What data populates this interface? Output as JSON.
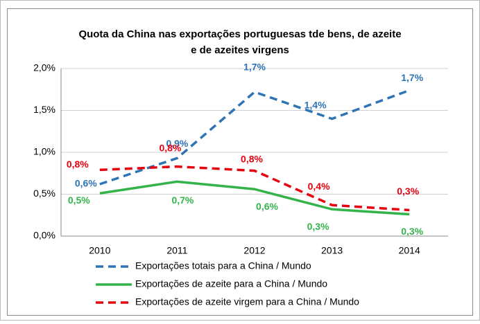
{
  "chart_data": {
    "type": "line",
    "title": [
      "Quota da China nas exportações portuguesas tde bens, de  azeite",
      "e de azeites virgens"
    ],
    "categories": [
      "2010",
      "2011",
      "2012",
      "2013",
      "2014"
    ],
    "ylim": [
      0,
      2.0
    ],
    "yticks": [
      {
        "value": 0,
        "label": "0,0%"
      },
      {
        "value": 0.5,
        "label": "0,5%"
      },
      {
        "value": 1.0,
        "label": "1,0%"
      },
      {
        "value": 1.5,
        "label": "1,5%"
      },
      {
        "value": 2.0,
        "label": "2,0%"
      }
    ],
    "grid": true,
    "series": [
      {
        "name": "Exportações totais para a China / Mundo",
        "color": "#2e74b5",
        "dash": true,
        "values": [
          0.62,
          0.93,
          1.72,
          1.4,
          1.74
        ],
        "value_labels": [
          "0,6%",
          "0,9%",
          "1,7%",
          "1,4%",
          "1,7%"
        ]
      },
      {
        "name": "Exportações de azeite para a China / Mundo",
        "color": "#33b34a",
        "dash": false,
        "values": [
          0.51,
          0.65,
          0.56,
          0.32,
          0.26
        ],
        "value_labels": [
          "0,5%",
          "0,7%",
          "0,6%",
          "0,3%",
          "0,3%"
        ]
      },
      {
        "name": "Exportações de azeite virgem para a China / Mundo",
        "color": "#e8000f",
        "dash": true,
        "values": [
          0.79,
          0.83,
          0.78,
          0.37,
          0.31
        ],
        "value_labels": [
          "0,8%",
          "0,8%",
          "0,8%",
          "0,4%",
          "0,3%"
        ]
      }
    ]
  }
}
